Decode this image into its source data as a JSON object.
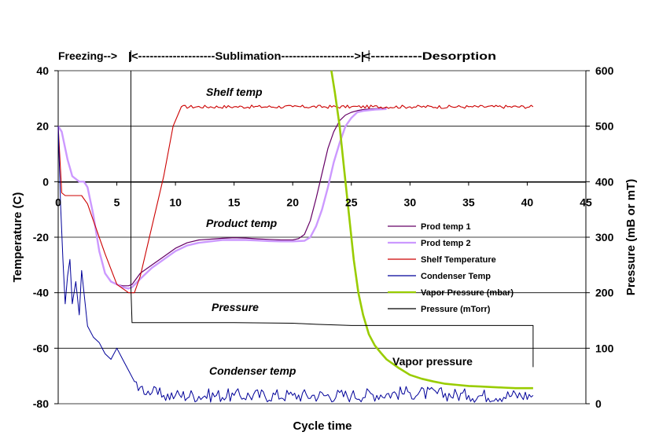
{
  "chart_data": {
    "type": "line",
    "xlabel": "Cycle time",
    "ylabel": "Temperature (C)",
    "y2label": "Pressure (mB or mT)",
    "xlim": [
      0,
      45
    ],
    "ylim": [
      -80,
      40
    ],
    "y2lim": [
      0,
      600
    ],
    "xticks": [
      "0",
      "5",
      "10",
      "15",
      "20",
      "25",
      "30",
      "35",
      "40",
      "45"
    ],
    "yticks": [
      "40",
      "20",
      "0",
      "-20",
      "-40",
      "-60",
      "-80"
    ],
    "y2ticks": [
      "600",
      "500",
      "400",
      "300",
      "200",
      "100",
      "0"
    ],
    "grid": "horizontal",
    "legend_position": "center-right",
    "phases": {
      "freezing": "Freezing-->",
      "sublimation": "|<--------------------Sublimation------------------->|",
      "desorption": "<-----------Desorption"
    },
    "phase_boundaries": [
      6.2,
      26.5
    ],
    "annotations": {
      "shelf": "Shelf temp",
      "product": "Product temp",
      "pressure": "Pressure",
      "condenser": "Condenser temp",
      "vapor": "Vapor pressure"
    },
    "series": [
      {
        "name": "Prod temp 1",
        "axis": "left",
        "color": "#660066",
        "x": [
          0,
          0.3,
          0.8,
          1.2,
          1.8,
          2.2,
          2.5,
          3.0,
          3.5,
          4.0,
          4.5,
          5.0,
          5.5,
          6.0,
          6.3,
          7,
          8,
          9,
          10,
          11,
          12,
          13,
          14,
          15,
          16,
          17,
          18,
          19,
          20,
          20.5,
          21,
          21.5,
          22,
          22.5,
          23,
          23.5,
          24,
          24.5,
          25,
          25.5,
          26,
          27,
          28
        ],
        "y": [
          20,
          18,
          8,
          2,
          0,
          0,
          -2,
          -12,
          -25,
          -33,
          -36,
          -37,
          -37.5,
          -37.5,
          -37,
          -33,
          -30,
          -27,
          -24,
          -22,
          -21,
          -20.7,
          -20.4,
          -20.2,
          -20.3,
          -20.6,
          -20.8,
          -21,
          -21,
          -20.5,
          -19,
          -14,
          -6,
          3,
          12,
          18,
          22,
          24,
          25,
          25.6,
          26,
          26.3,
          26.5
        ]
      },
      {
        "name": "Prod temp 2",
        "axis": "left",
        "color": "#cc99ff",
        "x": [
          0,
          0.3,
          0.8,
          1.2,
          1.8,
          2.2,
          2.5,
          3.0,
          3.5,
          4.0,
          4.5,
          5.0,
          5.5,
          6.0,
          6.3,
          7,
          8,
          9,
          10,
          11,
          12,
          13,
          14,
          15,
          16,
          17,
          18,
          19,
          20,
          21,
          21.5,
          22,
          22.5,
          23,
          23.5,
          24,
          24.5,
          25,
          25.5,
          26,
          27,
          28
        ],
        "y": [
          20,
          18,
          8,
          2,
          0,
          0,
          -2,
          -12,
          -25,
          -33,
          -36,
          -37,
          -38,
          -38.5,
          -38,
          -35,
          -31,
          -28,
          -25,
          -23,
          -22,
          -21.5,
          -21,
          -21,
          -21,
          -21.2,
          -21.4,
          -21.5,
          -21.5,
          -21.3,
          -20,
          -16,
          -10,
          -2,
          7,
          14,
          20,
          23,
          25,
          25.5,
          26,
          26.2
        ]
      },
      {
        "name": "Shelf Temperature",
        "axis": "left",
        "color": "#cc0000",
        "x": [
          0,
          0.3,
          0.6,
          1,
          2,
          2.5,
          3,
          4,
          5,
          6,
          6.5,
          7,
          8,
          9,
          9.8,
          10.5,
          15,
          20,
          25,
          30,
          35,
          40.5
        ],
        "y": [
          20,
          -4,
          -5,
          -5,
          -5,
          -8,
          -14,
          -26,
          -37,
          -40,
          -40,
          -34,
          -16,
          2,
          20,
          27,
          27,
          27,
          27,
          27,
          27,
          27
        ]
      },
      {
        "name": "Condenser Temp",
        "axis": "left",
        "color": "#000099",
        "x": [
          0,
          0.2,
          0.4,
          0.6,
          0.8,
          1.0,
          1.2,
          1.5,
          1.8,
          2.0,
          2.3,
          2.5,
          3.0,
          3.5,
          4.0,
          4.5,
          5.0,
          5.5,
          6.0,
          6.5,
          7,
          8,
          9,
          10,
          15,
          20,
          25,
          30,
          35,
          40.5
        ],
        "y": [
          20,
          -8,
          -28,
          -44,
          -34,
          -28,
          -44,
          -36,
          -48,
          -32,
          -44,
          -52,
          -56,
          -58,
          -62,
          -64,
          -60,
          -64,
          -68,
          -72,
          -74,
          -76,
          -77,
          -77,
          -77,
          -77,
          -77,
          -76,
          -77,
          -77
        ]
      },
      {
        "name": "Vapor Pressure (mbar)",
        "axis": "right",
        "color": "#99cc00",
        "x": [
          23.3,
          23.6,
          24,
          24.4,
          24.8,
          25.2,
          25.6,
          26,
          26.5,
          27,
          27.5,
          28,
          29,
          30,
          31,
          32,
          33,
          34,
          35,
          36,
          37,
          38,
          39,
          40,
          40.5
        ],
        "y": [
          600,
          560,
          500,
          420,
          340,
          260,
          200,
          160,
          125,
          105,
          92,
          80,
          65,
          52,
          45,
          40,
          36,
          34,
          32,
          31,
          30,
          29,
          28,
          28,
          28
        ]
      },
      {
        "name": "Pressure (mTorr)",
        "axis": "right",
        "x": [
          6.2,
          6.3,
          7,
          10,
          15,
          20,
          22,
          25,
          30,
          35,
          40,
          40.5,
          40.5
        ],
        "y": [
          212,
          146,
          146,
          146,
          146,
          145,
          143,
          141,
          141,
          141,
          141,
          141,
          66
        ]
      }
    ]
  }
}
